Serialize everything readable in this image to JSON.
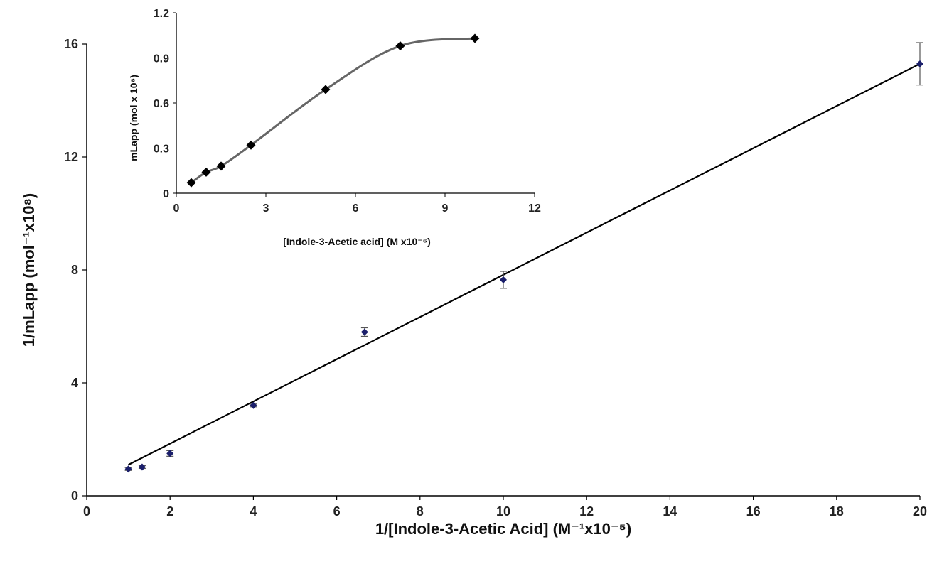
{
  "chart_data": [
    {
      "type": "scatter",
      "role": "main",
      "xlabel": "1/[Indole-3-Acetic Acid] (M⁻¹x10⁻⁵)",
      "ylabel": "1/mLapp (mol⁻¹x10⁸)",
      "xlim": [
        0,
        20
      ],
      "ylim": [
        0,
        16
      ],
      "xticks": [
        0,
        2,
        4,
        6,
        8,
        10,
        12,
        14,
        16,
        18,
        20
      ],
      "yticks": [
        0,
        4,
        8,
        12,
        16
      ],
      "grid": false,
      "series": [
        {
          "x": [
            1,
            1.33,
            2,
            4,
            6.67,
            10,
            20
          ],
          "y": [
            0.95,
            1.02,
            1.5,
            3.2,
            5.8,
            7.65,
            15.3
          ],
          "error": [
            0.05,
            0.05,
            0.1,
            0.05,
            0.15,
            0.3,
            0.75
          ]
        }
      ],
      "trendline": {
        "x": [
          1,
          20
        ],
        "y": [
          1.1,
          15.3
        ]
      },
      "colors": {
        "points": "#1b1f6b",
        "line": "#000000",
        "error": "#555555"
      }
    },
    {
      "type": "line",
      "role": "inset",
      "xlabel": "[Indole-3-Acetic acid] (M x10⁻⁶)",
      "ylabel": "mLapp (mol x 10⁸)",
      "xlim": [
        0,
        12
      ],
      "ylim": [
        0,
        1.2
      ],
      "xticks": [
        0,
        3,
        6,
        9,
        12
      ],
      "yticks": [
        0,
        0.3,
        0.6,
        0.9,
        1.2
      ],
      "ytick_labels": [
        "0",
        "0.3",
        "0.6",
        "0.9",
        "1.2"
      ],
      "grid": false,
      "series": [
        {
          "x": [
            0.5,
            1,
            1.5,
            2.5,
            5,
            7.5,
            10
          ],
          "y": [
            0.07,
            0.14,
            0.18,
            0.32,
            0.69,
            0.98,
            1.03
          ]
        }
      ],
      "colors": {
        "points": "#000000",
        "line": "#666666"
      }
    }
  ]
}
